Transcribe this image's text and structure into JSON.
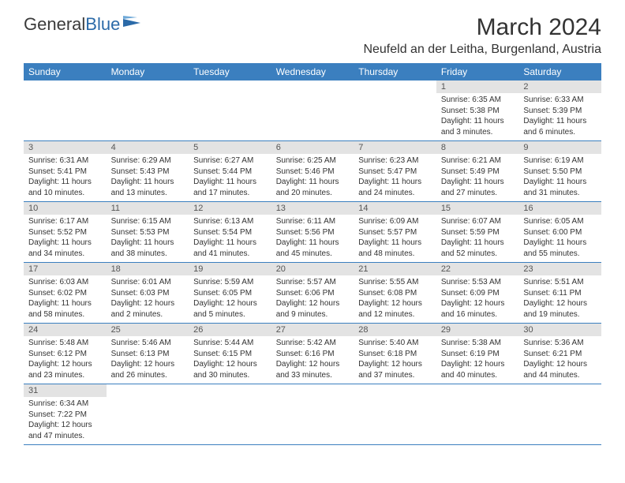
{
  "logo": {
    "text1": "General",
    "text2": "Blue"
  },
  "title": "March 2024",
  "location": "Neufeld an der Leitha, Burgenland, Austria",
  "colors": {
    "header_bg": "#3b7fbf",
    "header_fg": "#ffffff",
    "daynum_bg": "#e3e3e3",
    "row_border": "#3b7fbf",
    "logo_blue": "#2b6aa8"
  },
  "weekdays": [
    "Sunday",
    "Monday",
    "Tuesday",
    "Wednesday",
    "Thursday",
    "Friday",
    "Saturday"
  ],
  "weeks": [
    [
      null,
      null,
      null,
      null,
      null,
      {
        "n": "1",
        "sr": "Sunrise: 6:35 AM",
        "ss": "Sunset: 5:38 PM",
        "dl": "Daylight: 11 hours and 3 minutes."
      },
      {
        "n": "2",
        "sr": "Sunrise: 6:33 AM",
        "ss": "Sunset: 5:39 PM",
        "dl": "Daylight: 11 hours and 6 minutes."
      }
    ],
    [
      {
        "n": "3",
        "sr": "Sunrise: 6:31 AM",
        "ss": "Sunset: 5:41 PM",
        "dl": "Daylight: 11 hours and 10 minutes."
      },
      {
        "n": "4",
        "sr": "Sunrise: 6:29 AM",
        "ss": "Sunset: 5:43 PM",
        "dl": "Daylight: 11 hours and 13 minutes."
      },
      {
        "n": "5",
        "sr": "Sunrise: 6:27 AM",
        "ss": "Sunset: 5:44 PM",
        "dl": "Daylight: 11 hours and 17 minutes."
      },
      {
        "n": "6",
        "sr": "Sunrise: 6:25 AM",
        "ss": "Sunset: 5:46 PM",
        "dl": "Daylight: 11 hours and 20 minutes."
      },
      {
        "n": "7",
        "sr": "Sunrise: 6:23 AM",
        "ss": "Sunset: 5:47 PM",
        "dl": "Daylight: 11 hours and 24 minutes."
      },
      {
        "n": "8",
        "sr": "Sunrise: 6:21 AM",
        "ss": "Sunset: 5:49 PM",
        "dl": "Daylight: 11 hours and 27 minutes."
      },
      {
        "n": "9",
        "sr": "Sunrise: 6:19 AM",
        "ss": "Sunset: 5:50 PM",
        "dl": "Daylight: 11 hours and 31 minutes."
      }
    ],
    [
      {
        "n": "10",
        "sr": "Sunrise: 6:17 AM",
        "ss": "Sunset: 5:52 PM",
        "dl": "Daylight: 11 hours and 34 minutes."
      },
      {
        "n": "11",
        "sr": "Sunrise: 6:15 AM",
        "ss": "Sunset: 5:53 PM",
        "dl": "Daylight: 11 hours and 38 minutes."
      },
      {
        "n": "12",
        "sr": "Sunrise: 6:13 AM",
        "ss": "Sunset: 5:54 PM",
        "dl": "Daylight: 11 hours and 41 minutes."
      },
      {
        "n": "13",
        "sr": "Sunrise: 6:11 AM",
        "ss": "Sunset: 5:56 PM",
        "dl": "Daylight: 11 hours and 45 minutes."
      },
      {
        "n": "14",
        "sr": "Sunrise: 6:09 AM",
        "ss": "Sunset: 5:57 PM",
        "dl": "Daylight: 11 hours and 48 minutes."
      },
      {
        "n": "15",
        "sr": "Sunrise: 6:07 AM",
        "ss": "Sunset: 5:59 PM",
        "dl": "Daylight: 11 hours and 52 minutes."
      },
      {
        "n": "16",
        "sr": "Sunrise: 6:05 AM",
        "ss": "Sunset: 6:00 PM",
        "dl": "Daylight: 11 hours and 55 minutes."
      }
    ],
    [
      {
        "n": "17",
        "sr": "Sunrise: 6:03 AM",
        "ss": "Sunset: 6:02 PM",
        "dl": "Daylight: 11 hours and 58 minutes."
      },
      {
        "n": "18",
        "sr": "Sunrise: 6:01 AM",
        "ss": "Sunset: 6:03 PM",
        "dl": "Daylight: 12 hours and 2 minutes."
      },
      {
        "n": "19",
        "sr": "Sunrise: 5:59 AM",
        "ss": "Sunset: 6:05 PM",
        "dl": "Daylight: 12 hours and 5 minutes."
      },
      {
        "n": "20",
        "sr": "Sunrise: 5:57 AM",
        "ss": "Sunset: 6:06 PM",
        "dl": "Daylight: 12 hours and 9 minutes."
      },
      {
        "n": "21",
        "sr": "Sunrise: 5:55 AM",
        "ss": "Sunset: 6:08 PM",
        "dl": "Daylight: 12 hours and 12 minutes."
      },
      {
        "n": "22",
        "sr": "Sunrise: 5:53 AM",
        "ss": "Sunset: 6:09 PM",
        "dl": "Daylight: 12 hours and 16 minutes."
      },
      {
        "n": "23",
        "sr": "Sunrise: 5:51 AM",
        "ss": "Sunset: 6:11 PM",
        "dl": "Daylight: 12 hours and 19 minutes."
      }
    ],
    [
      {
        "n": "24",
        "sr": "Sunrise: 5:48 AM",
        "ss": "Sunset: 6:12 PM",
        "dl": "Daylight: 12 hours and 23 minutes."
      },
      {
        "n": "25",
        "sr": "Sunrise: 5:46 AM",
        "ss": "Sunset: 6:13 PM",
        "dl": "Daylight: 12 hours and 26 minutes."
      },
      {
        "n": "26",
        "sr": "Sunrise: 5:44 AM",
        "ss": "Sunset: 6:15 PM",
        "dl": "Daylight: 12 hours and 30 minutes."
      },
      {
        "n": "27",
        "sr": "Sunrise: 5:42 AM",
        "ss": "Sunset: 6:16 PM",
        "dl": "Daylight: 12 hours and 33 minutes."
      },
      {
        "n": "28",
        "sr": "Sunrise: 5:40 AM",
        "ss": "Sunset: 6:18 PM",
        "dl": "Daylight: 12 hours and 37 minutes."
      },
      {
        "n": "29",
        "sr": "Sunrise: 5:38 AM",
        "ss": "Sunset: 6:19 PM",
        "dl": "Daylight: 12 hours and 40 minutes."
      },
      {
        "n": "30",
        "sr": "Sunrise: 5:36 AM",
        "ss": "Sunset: 6:21 PM",
        "dl": "Daylight: 12 hours and 44 minutes."
      }
    ],
    [
      {
        "n": "31",
        "sr": "Sunrise: 6:34 AM",
        "ss": "Sunset: 7:22 PM",
        "dl": "Daylight: 12 hours and 47 minutes."
      },
      null,
      null,
      null,
      null,
      null,
      null
    ]
  ]
}
